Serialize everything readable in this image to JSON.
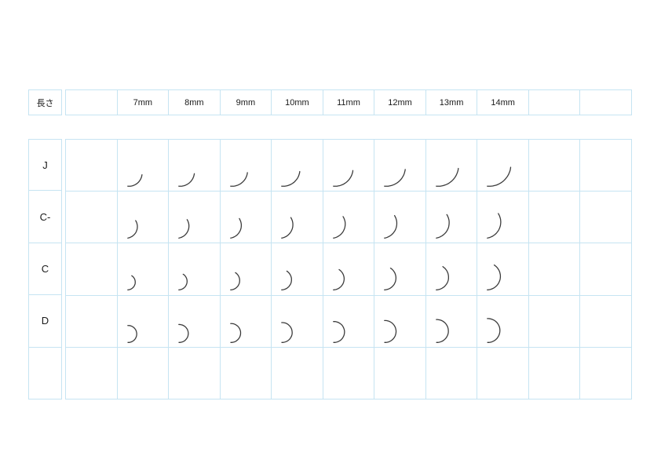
{
  "theme": {
    "page_bg": "#ffffff",
    "border_color": "#c6e4f2",
    "text_color": "#1a1a1a",
    "curve_color": "#3a3a3a"
  },
  "header": {
    "length_label": "長さ",
    "columns": [
      "",
      "7mm",
      "8mm",
      "9mm",
      "10mm",
      "11mm",
      "12mm",
      "13mm",
      "14mm",
      "",
      ""
    ]
  },
  "rows": [
    {
      "label": "J",
      "curl": {
        "start_deg": 265,
        "span_deg": 88,
        "radius_7mm": 17,
        "radius_14mm": 28
      }
    },
    {
      "label": "C-",
      "curl": {
        "start_deg": 280,
        "span_deg": 112,
        "radius_7mm": 15,
        "radius_14mm": 21
      }
    },
    {
      "label": "C",
      "curl": {
        "start_deg": 272,
        "span_deg": 145,
        "radius_7mm": 10,
        "radius_14mm": 17.5
      }
    },
    {
      "label": "D",
      "curl": {
        "start_deg": 268,
        "span_deg": 185,
        "radius_7mm": 11,
        "radius_14mm": 15.5
      }
    },
    {
      "label": "",
      "curl": null
    }
  ],
  "chart_data": {
    "type": "table",
    "title": "長さ",
    "columns": [
      "7mm",
      "8mm",
      "9mm",
      "10mm",
      "11mm",
      "12mm",
      "13mm",
      "14mm"
    ],
    "rows": [
      "J",
      "C-",
      "C",
      "D"
    ],
    "cells": "each curl-type row × length column cell contains a lash curve glyph; glyph size grows with length (7mm→14mm) and curl tightness grows from J (nearly straight sweep) to D (near half-circle hook)"
  }
}
